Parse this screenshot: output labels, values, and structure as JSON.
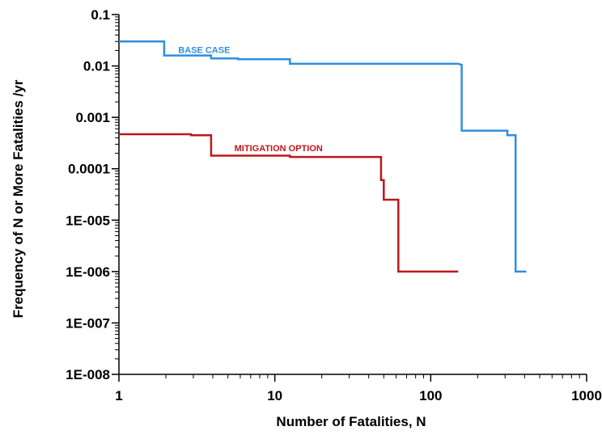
{
  "chart_data": {
    "type": "line",
    "title": "",
    "xlabel": "Number of Fatalities, N",
    "ylabel": "Frequency of N or More Fatalities /yr",
    "x_scale": "log",
    "y_scale": "log",
    "xlim": [
      1,
      1000
    ],
    "ylim": [
      1e-08,
      0.1
    ],
    "x_ticks": [
      {
        "value": 1,
        "label": "1"
      },
      {
        "value": 10,
        "label": "10"
      },
      {
        "value": 100,
        "label": "100"
      },
      {
        "value": 1000,
        "label": "1000"
      }
    ],
    "y_ticks": [
      {
        "value": 0.1,
        "label": "0.1"
      },
      {
        "value": 0.01,
        "label": "0.01"
      },
      {
        "value": 0.001,
        "label": "0.001"
      },
      {
        "value": 0.0001,
        "label": "0.0001"
      },
      {
        "value": 1e-05,
        "label": "1E-005"
      },
      {
        "value": 1e-06,
        "label": "1E-006"
      },
      {
        "value": 1e-07,
        "label": "1E-007"
      },
      {
        "value": 1e-08,
        "label": "1E-008"
      }
    ],
    "grid": false,
    "series": [
      {
        "name": "BASE CASE",
        "color": "#2e8fe0",
        "label_at": {
          "x": 2.4,
          "y": 0.018
        },
        "points": [
          [
            1,
            0.03
          ],
          [
            1.95,
            0.03
          ],
          [
            1.95,
            0.016
          ],
          [
            3.9,
            0.016
          ],
          [
            3.9,
            0.014
          ],
          [
            5.8,
            0.014
          ],
          [
            5.8,
            0.0135
          ],
          [
            12.5,
            0.0135
          ],
          [
            12.5,
            0.011
          ],
          [
            150,
            0.011
          ],
          [
            158,
            0.0105
          ],
          [
            158,
            0.00055
          ],
          [
            310,
            0.00055
          ],
          [
            310,
            0.00045
          ],
          [
            350,
            0.00045
          ],
          [
            350,
            1e-06
          ],
          [
            410,
            1e-06
          ]
        ]
      },
      {
        "name": "MITIGATION OPTION",
        "color": "#c0161b",
        "label_at": {
          "x": 5.5,
          "y": 0.00022
        },
        "points": [
          [
            1,
            0.00047
          ],
          [
            2.9,
            0.00047
          ],
          [
            2.9,
            0.00045
          ],
          [
            3.9,
            0.00045
          ],
          [
            3.9,
            0.00018
          ],
          [
            12.5,
            0.00018
          ],
          [
            12.5,
            0.00017
          ],
          [
            48,
            0.00017
          ],
          [
            48,
            6e-05
          ],
          [
            50,
            6e-05
          ],
          [
            50,
            2.5e-05
          ],
          [
            62,
            2.5e-05
          ],
          [
            62,
            1e-06
          ],
          [
            150,
            1e-06
          ]
        ]
      }
    ]
  }
}
